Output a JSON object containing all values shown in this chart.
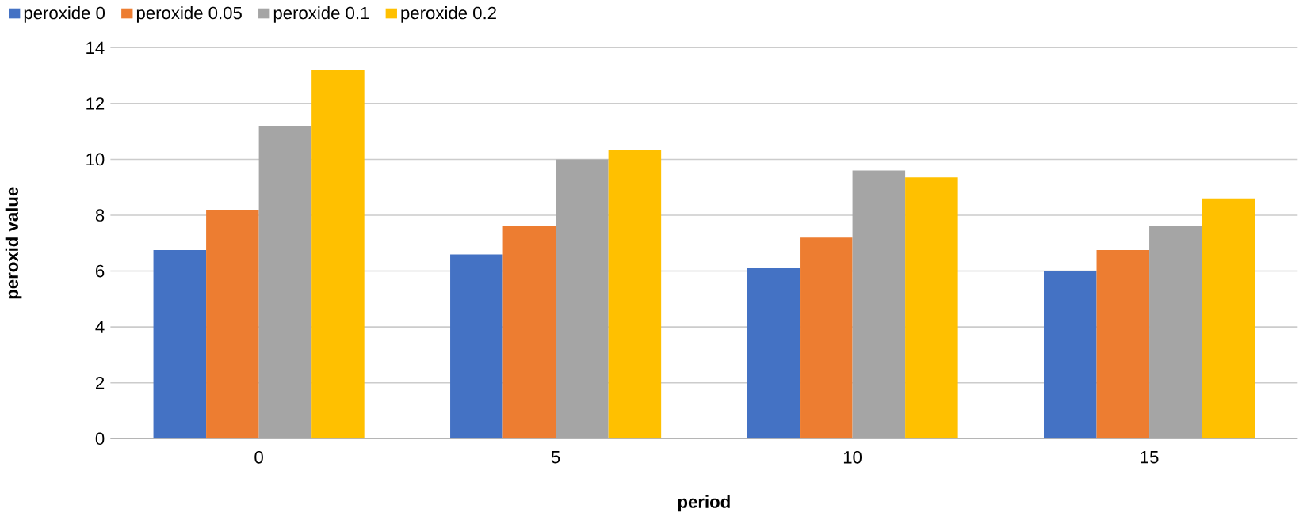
{
  "chart_data": {
    "type": "bar",
    "xlabel": "period",
    "ylabel": "peroxid value",
    "categories": [
      "0",
      "5",
      "10",
      "15"
    ],
    "series": [
      {
        "name": "peroxide 0",
        "color": "#4472c4",
        "values": [
          6.75,
          6.6,
          6.1,
          6.0
        ]
      },
      {
        "name": "peroxide 0.05",
        "color": "#ed7d31",
        "values": [
          8.2,
          7.6,
          7.2,
          6.75
        ]
      },
      {
        "name": "peroxide 0.1",
        "color": "#a5a5a5",
        "values": [
          11.2,
          10.0,
          9.6,
          7.6
        ]
      },
      {
        "name": "peroxide 0.2",
        "color": "#ffc000",
        "values": [
          13.2,
          10.35,
          9.35,
          8.6
        ]
      }
    ],
    "ylim": [
      0,
      14
    ],
    "yticks": [
      0,
      2,
      4,
      6,
      8,
      10,
      12,
      14
    ],
    "grid": "y",
    "legend": "top left"
  }
}
